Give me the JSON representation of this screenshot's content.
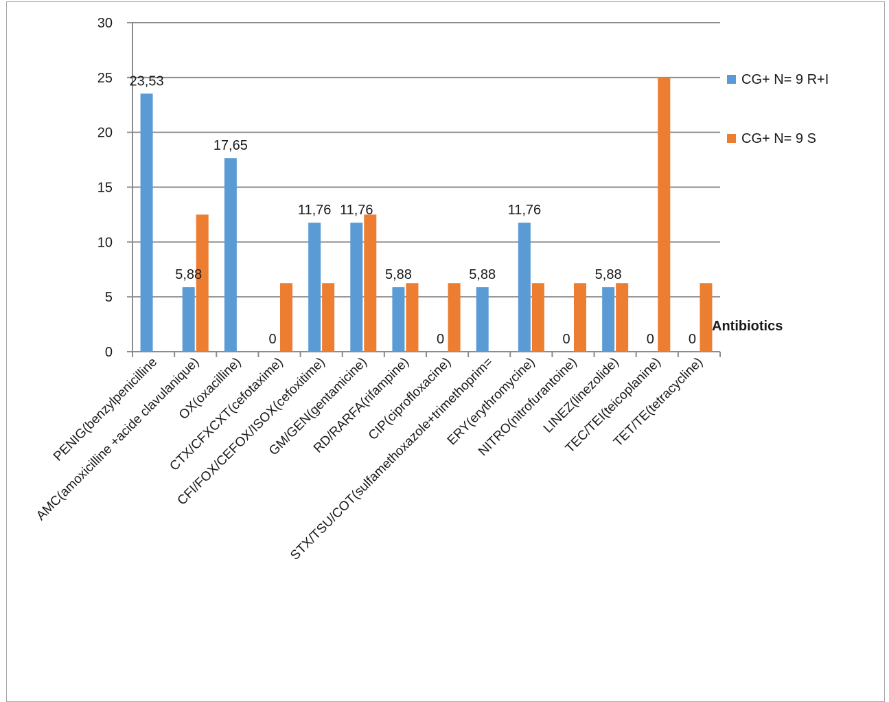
{
  "chart_data": {
    "type": "bar",
    "title": "",
    "xlabel": "Antibiotics",
    "ylabel": "",
    "ylim": [
      0,
      30
    ],
    "yticks": [
      0,
      5,
      10,
      15,
      20,
      25,
      30
    ],
    "grid": true,
    "legend_position": "right",
    "categories": [
      "PENIG(benzylpenicilline",
      "AMC(amoxicilline +acide clavulanique)",
      "OX(oxacilline)",
      "CTX/CFXCXT(cefotaxime)",
      "CFI/FOX/CEFOX/ISOX(cefoxitime)",
      "GM/GEN(gentamicine)",
      "RD/RARFA(rifampine)",
      "CIP(ciprofloxacine)",
      "STX/TSU/COT(sulfamethoxazole+trimethoprim=",
      "ERY(erythromycine)",
      "NITRO(nitrofurantoine)",
      "LINEZ(linezolide)",
      "TEC/TEI(teicoplanine)",
      "TET/TE(tetracycline)"
    ],
    "series": [
      {
        "name": "CG+ N= 9 R+I",
        "color": "#5b9bd5",
        "values": [
          23.53,
          5.88,
          17.65,
          0,
          11.76,
          11.76,
          5.88,
          0,
          5.88,
          11.76,
          0,
          5.88,
          0,
          0
        ],
        "data_labels": [
          "23,53",
          "5,88",
          "17,65",
          "0",
          "11,76",
          "11,76",
          "5,88",
          "0",
          "5,88",
          "11,76",
          "0",
          "5,88",
          "0",
          "0"
        ]
      },
      {
        "name": "CG+ N= 9 S",
        "color": "#ed7d31",
        "values": [
          0,
          12.5,
          0,
          6.25,
          6.25,
          12.5,
          6.25,
          6.25,
          0,
          6.25,
          6.25,
          6.25,
          25,
          6.25
        ]
      }
    ]
  }
}
